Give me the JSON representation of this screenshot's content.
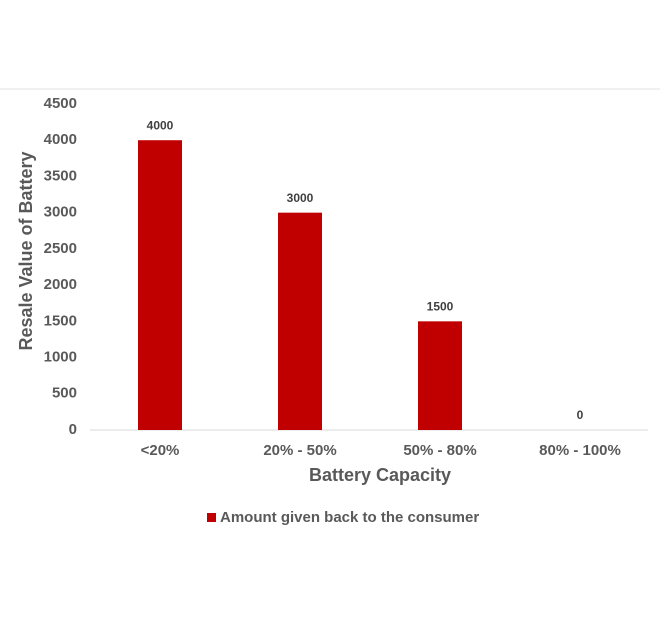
{
  "chart_data": {
    "type": "bar",
    "x_label": "Battery Capacity",
    "y_label": "Resale Value of Battery",
    "categories": [
      "<20%",
      "20% - 50%",
      "50% - 80%",
      "80% - 100%"
    ],
    "series": [
      {
        "name": "Amount given back to the consumer",
        "color": "#c00000",
        "values": [
          4000,
          3000,
          1500,
          0
        ]
      }
    ],
    "ylim": [
      0,
      4500
    ],
    "yticks": [
      0,
      500,
      1000,
      1500,
      2000,
      2500,
      3000,
      3500,
      4000,
      4500
    ],
    "legend": "bottom",
    "data_labels": true
  }
}
